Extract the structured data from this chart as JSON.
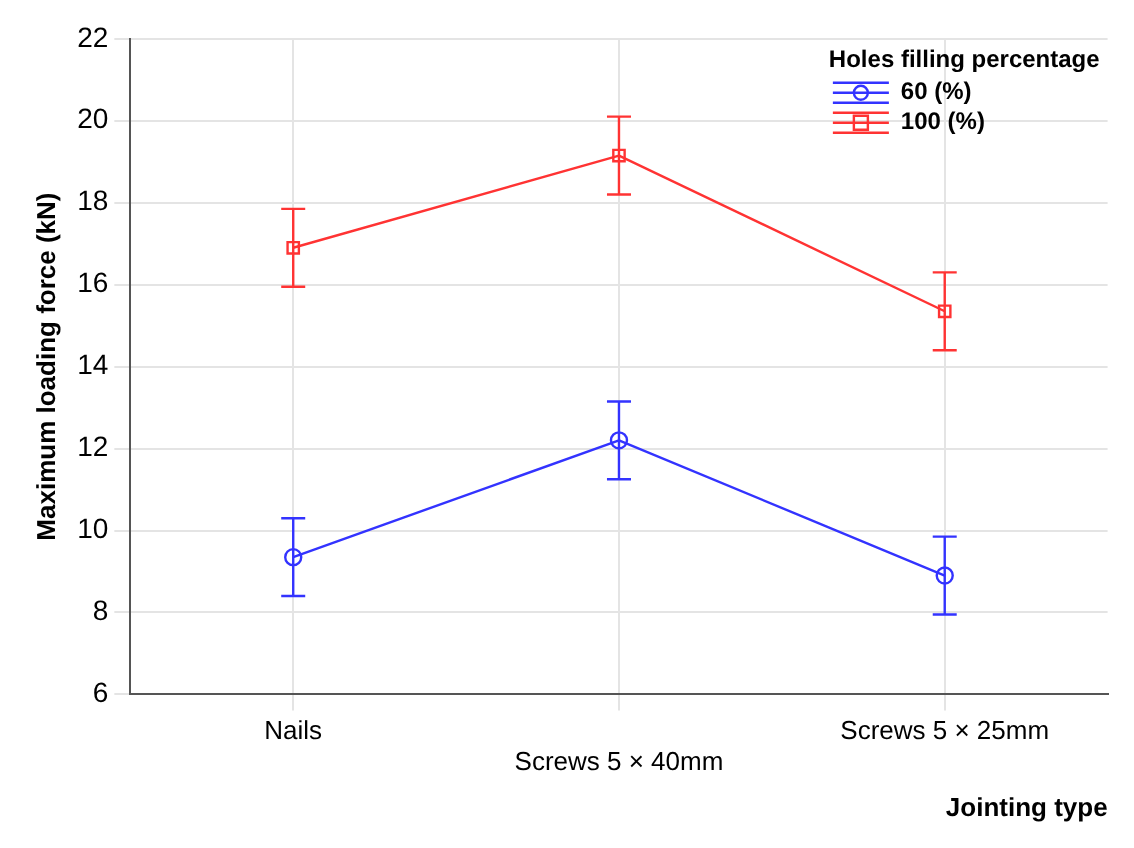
{
  "chart_data": {
    "type": "line",
    "xlabel": "Jointing type",
    "ylabel": "Maximum loading force (kN)",
    "legend_title": "Holes filling percentage",
    "categories": [
      "Nails",
      "Screws 5 × 40mm",
      "Screws 5 × 25mm"
    ],
    "series": [
      {
        "name": "60 (%)",
        "color": "#3333ff",
        "marker": "circle",
        "values": [
          9.35,
          12.2,
          8.9
        ],
        "errors": [
          0.95,
          0.95,
          0.95
        ]
      },
      {
        "name": "100 (%)",
        "color": "#ff3333",
        "marker": "square",
        "values": [
          16.9,
          19.15,
          15.35
        ],
        "errors": [
          0.95,
          0.95,
          0.95
        ]
      }
    ],
    "ylim": [
      6,
      22
    ],
    "yticks": [
      6,
      8,
      10,
      12,
      14,
      16,
      18,
      20,
      22
    ],
    "grid": true,
    "legend": "top right"
  }
}
